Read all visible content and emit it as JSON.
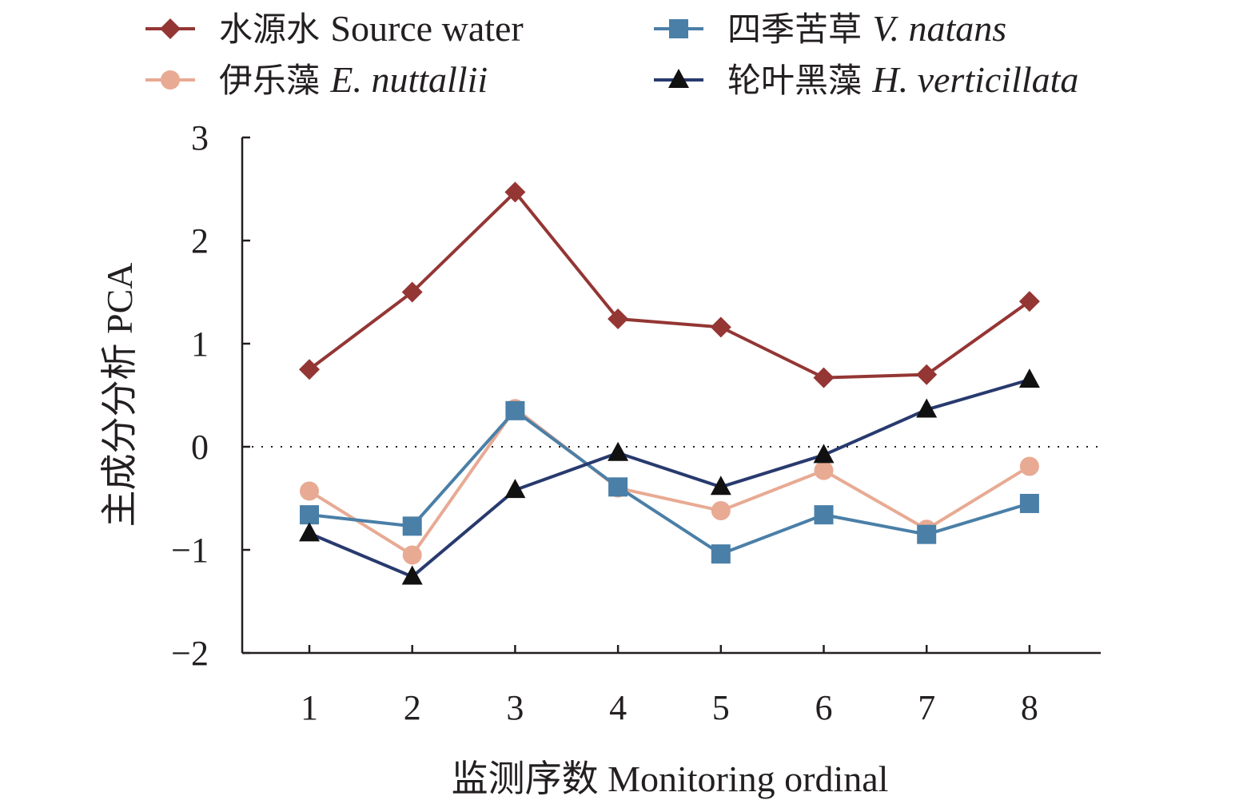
{
  "chart_data": {
    "type": "line",
    "xlabel": "监测序数 Monitoring ordinal",
    "ylabel": "主成分分析 PCA",
    "categories": [
      "1",
      "2",
      "3",
      "4",
      "5",
      "6",
      "7",
      "8"
    ],
    "x": [
      1,
      2,
      3,
      4,
      5,
      6,
      7,
      8
    ],
    "ylim": [
      -2,
      3
    ],
    "yticks": [
      -2,
      -1,
      0,
      1,
      2,
      3
    ],
    "ytick_labels": [
      "−2",
      "−1",
      "0",
      "1",
      "2",
      "3"
    ],
    "zero_reference_line": true,
    "grid": false,
    "legend_position": "top",
    "series": [
      {
        "name": "水源水 Source water",
        "name_cn": "水源水",
        "name_en": "Source water",
        "italic": false,
        "color": "#943634",
        "marker": "diamond",
        "values": [
          0.75,
          1.5,
          2.47,
          1.24,
          1.16,
          0.67,
          0.7,
          1.41
        ]
      },
      {
        "name": "伊乐藻 E. nuttallii",
        "name_cn": "伊乐藻",
        "name_en": "E. nuttallii",
        "italic": true,
        "color": "#e8aa93",
        "marker": "circle",
        "values": [
          -0.43,
          -1.05,
          0.37,
          -0.4,
          -0.62,
          -0.23,
          -0.8,
          -0.19
        ]
      },
      {
        "name": "四季苦草 V. natans",
        "name_cn": "四季苦草",
        "name_en": "V. natans",
        "italic": true,
        "color": "#4a7fa7",
        "marker": "square",
        "values": [
          -0.66,
          -0.77,
          0.35,
          -0.39,
          -1.04,
          -0.66,
          -0.85,
          -0.55
        ]
      },
      {
        "name": "轮叶黑藻 H. verticillata",
        "name_cn": "轮叶黑藻",
        "name_en": "H. verticillata",
        "italic": true,
        "color": "#283a6e",
        "marker": "triangle",
        "values": [
          -0.84,
          -1.26,
          -0.42,
          -0.06,
          -0.39,
          -0.08,
          0.36,
          0.65
        ]
      }
    ]
  }
}
